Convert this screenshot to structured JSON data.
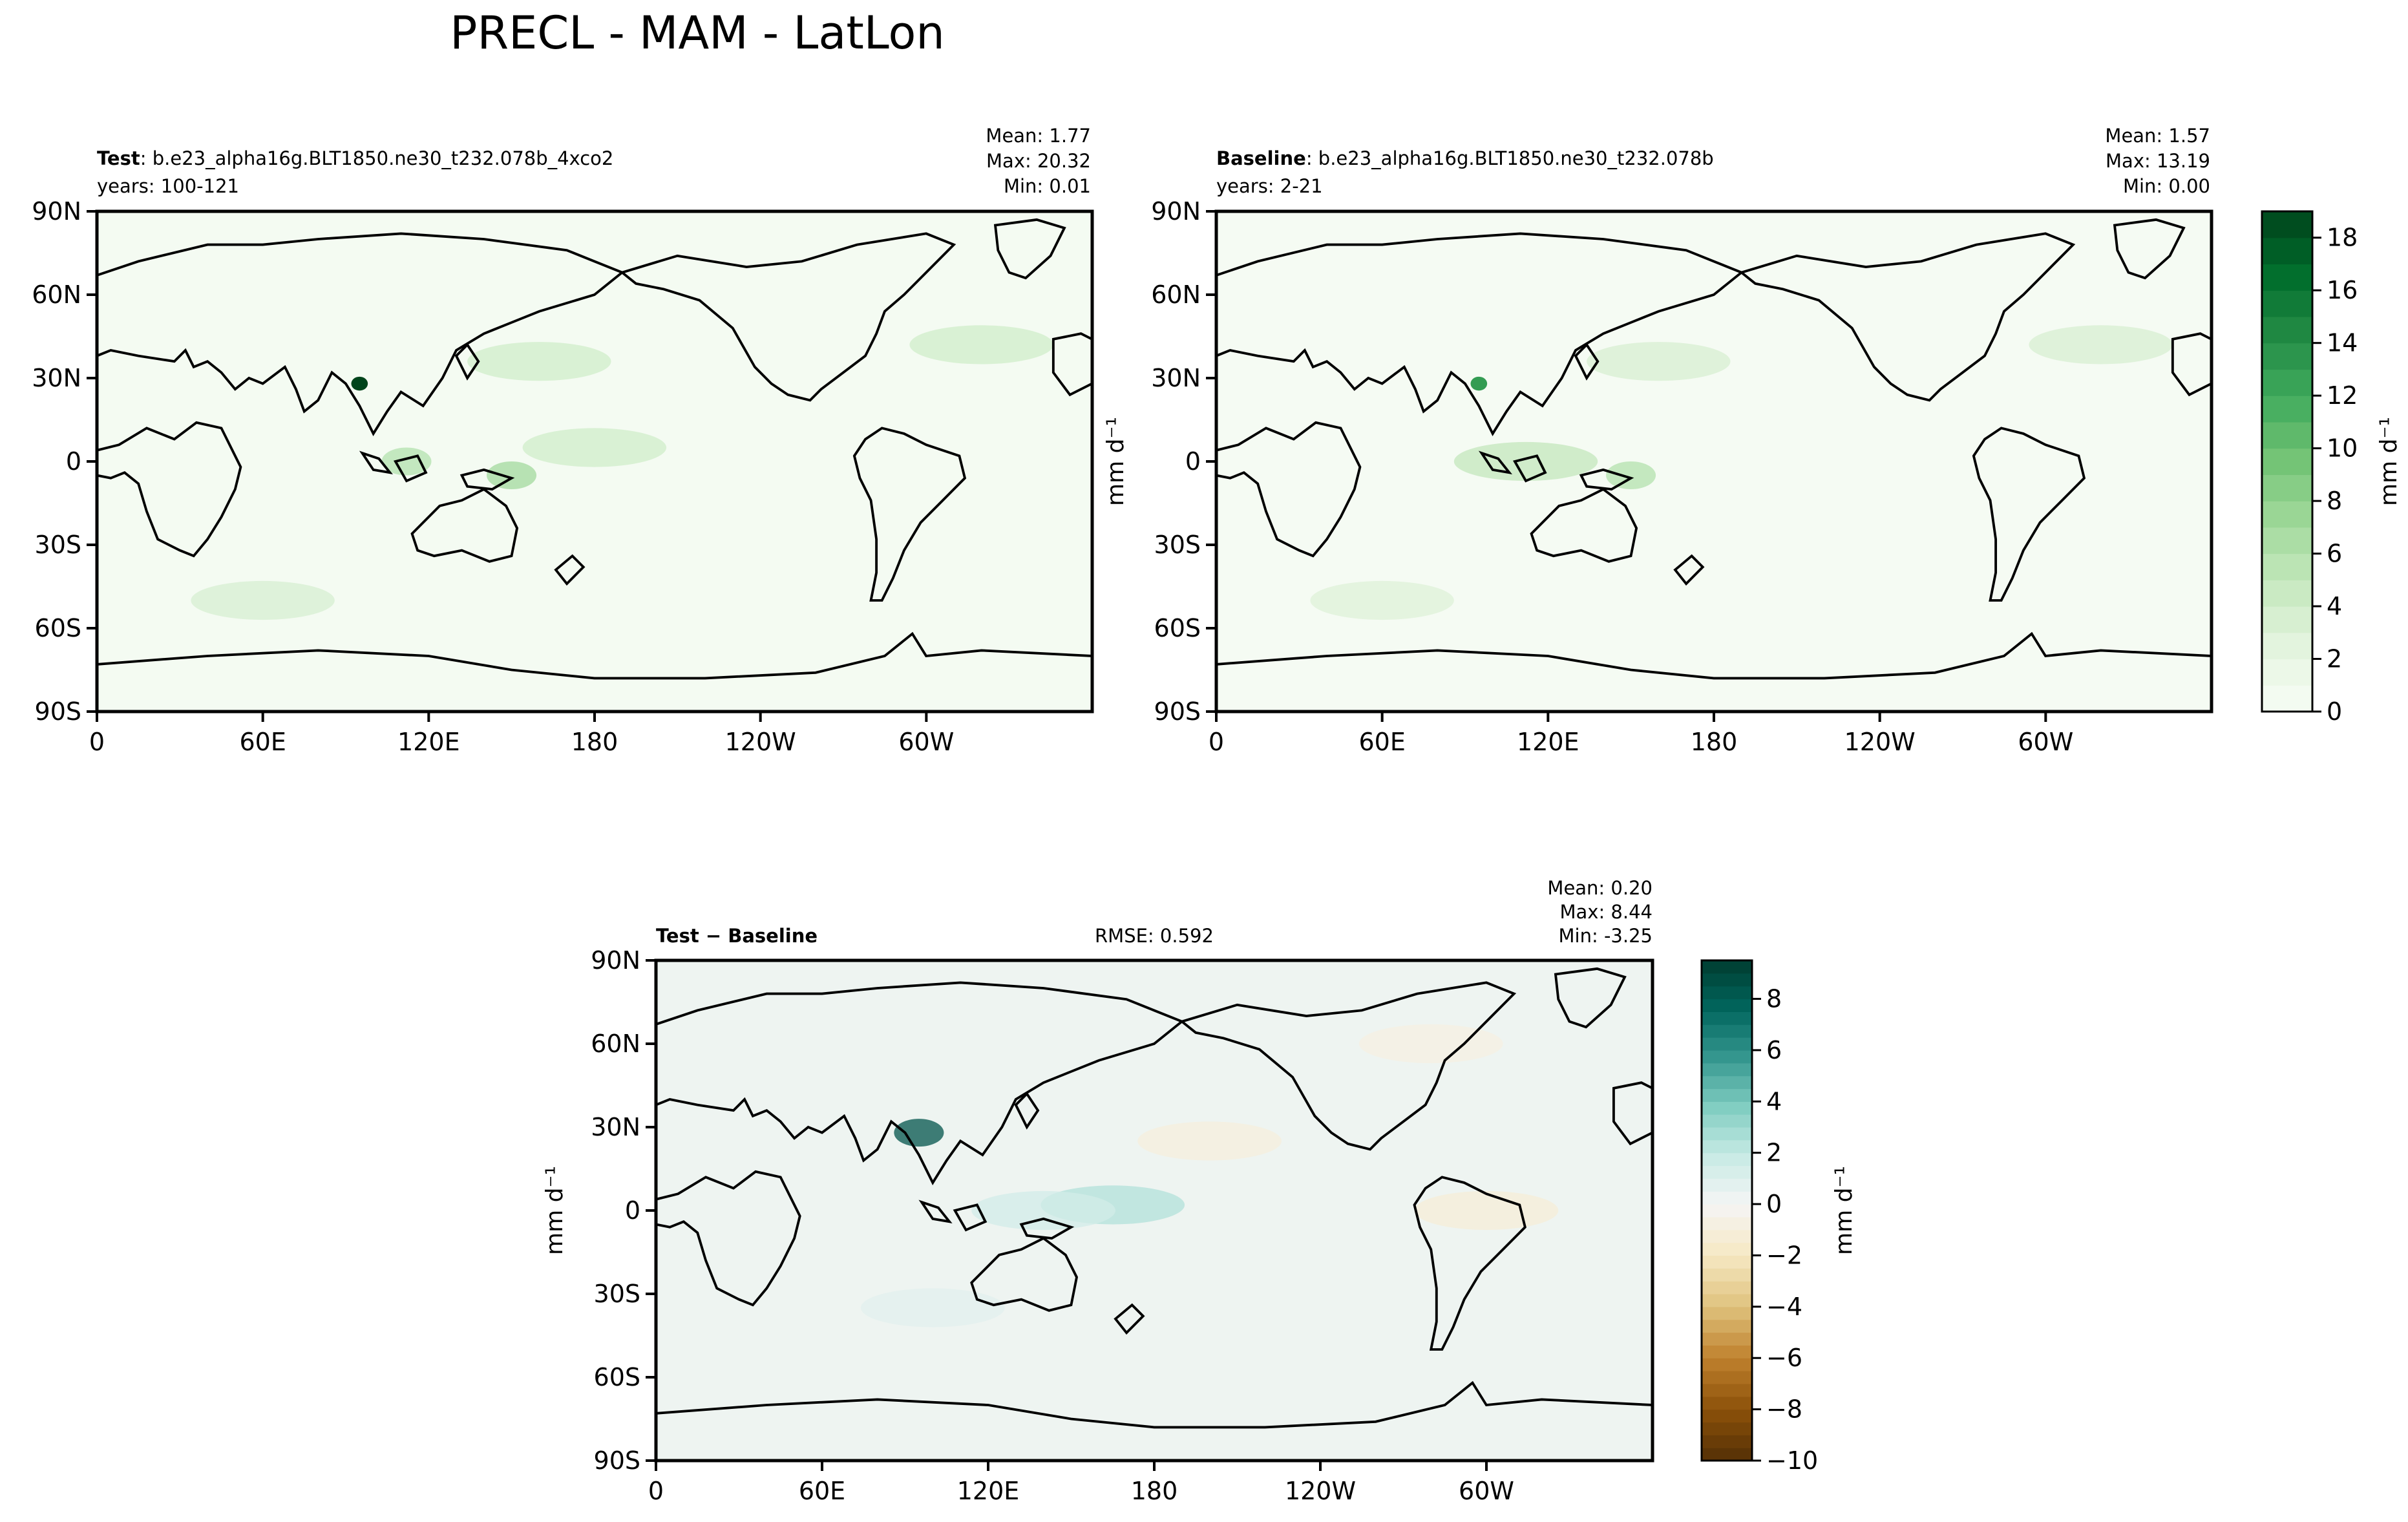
{
  "figure_title": "PRECL - MAM - LatLon",
  "colors": {
    "land_line": "#000000",
    "seq_cmap": [
      "#f7fcf5",
      "#e5f5e0",
      "#c7e9c0",
      "#a1d99b",
      "#74c476",
      "#41ab5d",
      "#238b45",
      "#006d2c",
      "#00441b"
    ],
    "div_cmap_pos": [
      "#f5f5f5",
      "#c7eae5",
      "#80cdc1",
      "#35978f",
      "#01665e",
      "#003c30"
    ],
    "div_cmap_neg": [
      "#f5f5f5",
      "#f6e8c3",
      "#dfc27d",
      "#bf812d",
      "#8c510a",
      "#543005"
    ]
  },
  "lon_ticks": [
    "0",
    "60E",
    "120E",
    "180",
    "120W",
    "60W"
  ],
  "lat_ticks": [
    "90N",
    "60N",
    "30N",
    "0",
    "30S",
    "60S",
    "90S"
  ],
  "panels": {
    "test": {
      "label_bold": "Test",
      "label_rest": ": b.e23_alpha16g.BLT1850.ne30_t232.078b_4xco2",
      "years": "years: 100-121",
      "mean": "Mean:  1.77",
      "max": "Max: 20.32",
      "min": "Min:  0.01"
    },
    "baseline": {
      "label_bold": "Baseline",
      "label_rest": ": b.e23_alpha16g.BLT1850.ne30_t232.078b",
      "years": "years: 2-21",
      "mean": "Mean:  1.57",
      "max": "Max: 13.19",
      "min": "Min:  0.00",
      "ylabel": "mm d⁻¹"
    },
    "diff": {
      "label": "Test − Baseline",
      "rmse": "RMSE: 0.592",
      "mean": "Mean:  0.20",
      "max": "Max:  8.44",
      "min": "Min: -3.25",
      "ylabel": "mm d⁻¹"
    }
  },
  "colorbar_top": {
    "label": "mm d⁻¹",
    "ticks": [
      "0",
      "2",
      "4",
      "6",
      "8",
      "10",
      "12",
      "14",
      "16",
      "18"
    ],
    "range": [
      0,
      19
    ]
  },
  "colorbar_diff": {
    "label": "mm d⁻¹",
    "ticks": [
      "−10",
      "−8",
      "−6",
      "−4",
      "−2",
      "0",
      "2",
      "4",
      "6",
      "8"
    ],
    "range": [
      -10,
      9.5
    ]
  },
  "chart_data": [
    {
      "type": "heatmap",
      "title": "Test",
      "xlabel": "",
      "ylabel": "",
      "x_ticks": [
        "0",
        "60E",
        "120E",
        "180",
        "120W",
        "60W"
      ],
      "y_ticks": [
        "90N",
        "60N",
        "30N",
        "0",
        "30S",
        "60S",
        "90S"
      ],
      "xlim": [
        0,
        360
      ],
      "ylim": [
        -90,
        90
      ],
      "units": "mm d⁻¹",
      "stats": {
        "mean": 1.77,
        "max": 20.32,
        "min": 0.01
      },
      "features": [
        {
          "lon": 95,
          "lat": 28,
          "value": 20
        },
        {
          "lon": 150,
          "lat": -5,
          "value": 7
        },
        {
          "lon": 112,
          "lat": 0,
          "value": 6
        },
        {
          "lon": 160,
          "lat": 36,
          "value": 4
        },
        {
          "lon": 320,
          "lat": 42,
          "value": 4
        },
        {
          "lon": 180,
          "lat": 5,
          "value": 4
        },
        {
          "lon": 60,
          "lat": -50,
          "value": 3.5
        }
      ]
    },
    {
      "type": "heatmap",
      "title": "Baseline",
      "xlabel": "",
      "ylabel": "mm d⁻¹",
      "x_ticks": [
        "0",
        "60E",
        "120E",
        "180",
        "120W",
        "60W"
      ],
      "y_ticks": [
        "90N",
        "60N",
        "30N",
        "0",
        "30S",
        "60S",
        "90S"
      ],
      "xlim": [
        0,
        360
      ],
      "ylim": [
        -90,
        90
      ],
      "units": "mm d⁻¹",
      "stats": {
        "mean": 1.57,
        "max": 13.19,
        "min": 0.0
      },
      "features": [
        {
          "lon": 95,
          "lat": 28,
          "value": 13
        },
        {
          "lon": 150,
          "lat": -5,
          "value": 6
        },
        {
          "lon": 112,
          "lat": 0,
          "value": 5
        },
        {
          "lon": 160,
          "lat": 36,
          "value": 3.5
        },
        {
          "lon": 320,
          "lat": 42,
          "value": 3.5
        },
        {
          "lon": 60,
          "lat": -50,
          "value": 3
        }
      ]
    },
    {
      "type": "heatmap",
      "title": "Test − Baseline",
      "xlabel": "",
      "ylabel": "mm d⁻¹",
      "x_ticks": [
        "0",
        "60E",
        "120E",
        "180",
        "120W",
        "60W"
      ],
      "y_ticks": [
        "90N",
        "60N",
        "30N",
        "0",
        "30S",
        "60S",
        "90S"
      ],
      "xlim": [
        0,
        360
      ],
      "ylim": [
        -90,
        90
      ],
      "units": "mm d⁻¹",
      "stats": {
        "mean": 0.2,
        "max": 8.44,
        "min": -3.25,
        "rmse": 0.592
      },
      "features": [
        {
          "lon": 95,
          "lat": 28,
          "value": 8.4
        },
        {
          "lon": 165,
          "lat": 2,
          "value": 2.5
        },
        {
          "lon": 140,
          "lat": 0,
          "value": 1.5
        },
        {
          "lon": 200,
          "lat": 25,
          "value": -1.0
        },
        {
          "lon": 300,
          "lat": 0,
          "value": -1.2
        },
        {
          "lon": 280,
          "lat": 60,
          "value": -0.8
        },
        {
          "lon": 100,
          "lat": -35,
          "value": 0.8
        }
      ]
    }
  ]
}
